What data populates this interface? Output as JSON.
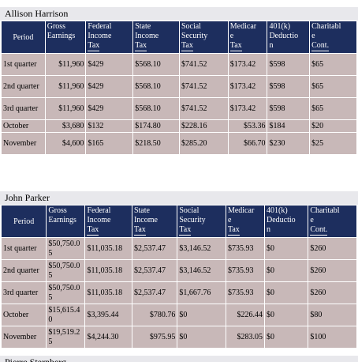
{
  "header_labels": {
    "period": "Period",
    "gross": [
      "Gross",
      "Earnings"
    ],
    "federal": [
      "Federal",
      "Income",
      "Tax"
    ],
    "state": [
      "State",
      "Income",
      "Tax"
    ],
    "social": [
      "Social",
      "Security",
      "Tax"
    ],
    "medicare": [
      "Medicar",
      "e",
      "Tax"
    ],
    "k401": [
      "401(k)",
      "Deductio",
      "n"
    ],
    "charity": [
      "Charitabl",
      "e",
      "Cont."
    ]
  },
  "sections": [
    {
      "name": "Allison Harrison",
      "rows": [
        {
          "period": "1st quarter",
          "gross": "$11,960",
          "federal": "$429",
          "state": "$568.10",
          "social": "$741.52",
          "medicare": "$173.42",
          "k401": "$598",
          "charity": "$65"
        },
        {
          "period": "2nd quarter",
          "gross": "$11,960",
          "federal": "$429",
          "state": "$568.10",
          "social": "$741.52",
          "medicare": "$173.42",
          "k401": "$598",
          "charity": "$65"
        },
        {
          "period": "3rd quarter",
          "gross": "$11,960",
          "federal": "$429",
          "state": "$568.10",
          "social": "$741.52",
          "medicare": "$173.42",
          "k401": "$598",
          "charity": "$65"
        },
        {
          "period": "October",
          "gross": "$3,680",
          "federal": "$132",
          "state": "$174.80",
          "social": "$228.16",
          "medicare": "$53.36",
          "k401": "$184",
          "charity": "$20"
        },
        {
          "period": "November",
          "gross": "$4,600",
          "federal": "$165",
          "state": "$218.50",
          "social": "$285.20",
          "medicare": "$66.70",
          "k401": "$230",
          "charity": "$25"
        }
      ]
    },
    {
      "name": "John Parker",
      "rows": [
        {
          "period": "1st quarter",
          "gross": "$50,750.05",
          "federal": "$11,035.18",
          "state": "$2,537.47",
          "social": "$3,146.52",
          "medicare": "$735.93",
          "k401": "$0",
          "charity": "$260"
        },
        {
          "period": "2nd quarter",
          "gross": "$50,750.05",
          "federal": "$11,035.18",
          "state": "$2,537.47",
          "social": "$3,146.52",
          "medicare": "$735.93",
          "k401": "$0",
          "charity": "$260"
        },
        {
          "period": "3rd quarter",
          "gross": "$50,750.05",
          "federal": "$11,035.18",
          "state": "$2,537.47",
          "social": "$1,667.76",
          "medicare": "$735.93",
          "k401": "$0",
          "charity": "$260"
        },
        {
          "period": "October",
          "gross": "$15,615.40",
          "federal": "$3,395.44",
          "state": "$780.76",
          "social": "$0",
          "medicare": "$226.44",
          "k401": "$0",
          "charity": "$80"
        },
        {
          "period": "November",
          "gross": "$19,519.25",
          "federal": "$4,244.30",
          "state": "$975.95",
          "social": "$0",
          "medicare": "$283.05",
          "k401": "$0",
          "charity": "$100"
        }
      ]
    },
    {
      "name": "Pierre Sternberg"
    }
  ]
}
